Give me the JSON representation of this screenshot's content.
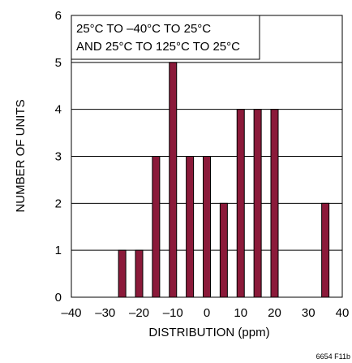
{
  "chart_data": {
    "type": "bar",
    "x": [
      -25,
      -20,
      -15,
      -10,
      -5,
      0,
      5,
      10,
      15,
      20,
      35
    ],
    "values": [
      1,
      1,
      3,
      5,
      3,
      3,
      2,
      4,
      4,
      4,
      2
    ],
    "xlabel": "DISTRIBUTION (ppm)",
    "ylabel": "NUMBER OF UNITS",
    "xlim": [
      -40,
      40
    ],
    "ylim": [
      0,
      6
    ],
    "x_ticks": [
      "–40",
      "–30",
      "–20",
      "–10",
      "0",
      "10",
      "20",
      "30",
      "40"
    ],
    "y_ticks": [
      "0",
      "1",
      "2",
      "3",
      "4",
      "5",
      "6"
    ],
    "annotation_lines": [
      "25°C TO –40°C TO 25°C",
      "AND 25°C TO 125°C TO 25°C"
    ],
    "grid": "horizontal",
    "bar_color": "#8b1a3a",
    "figure_id": "6654 F11b"
  }
}
